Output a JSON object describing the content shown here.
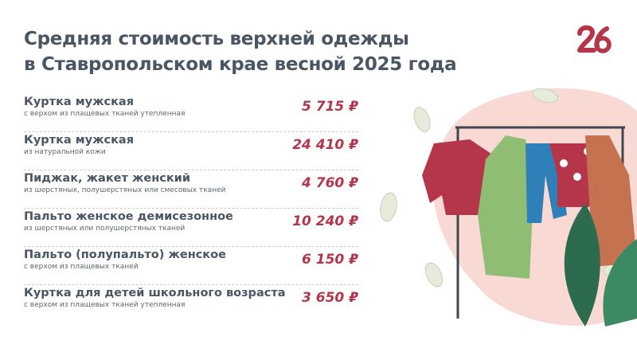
{
  "header": {
    "title_line1": "Средняя стоимость верхней одежды",
    "title_line2": "в Ставропольском крае весной 2025 года"
  },
  "logo": {
    "text": "26",
    "color": "#b5364a"
  },
  "colors": {
    "title": "#4a5663",
    "price": "#b5364a",
    "blob": "#f9d9d4"
  },
  "items": [
    {
      "name": "Куртка мужская",
      "description": "с верхом из плащевых тканей утепленная",
      "price": "5 715 ₽"
    },
    {
      "name": "Куртка мужская",
      "description": "из натуральной кожи",
      "price": "24 410 ₽"
    },
    {
      "name": "Пиджак, жакет женский",
      "description": "из шерстяных, полушерстяных или смесовых тканей",
      "price": "4 760 ₽"
    },
    {
      "name": "Пальто женское демисезонное",
      "description": "из шерстяных или полушерстяных тканей",
      "price": "10 240 ₽"
    },
    {
      "name": "Пальто (полупальто) женское",
      "description": "с верхом из плащевых тканей",
      "price": "6 150 ₽"
    },
    {
      "name": "Куртка для детей школьного возраста",
      "description": "с верхом из плащевых тканей утепленная",
      "price": "3 650 ₽"
    }
  ]
}
